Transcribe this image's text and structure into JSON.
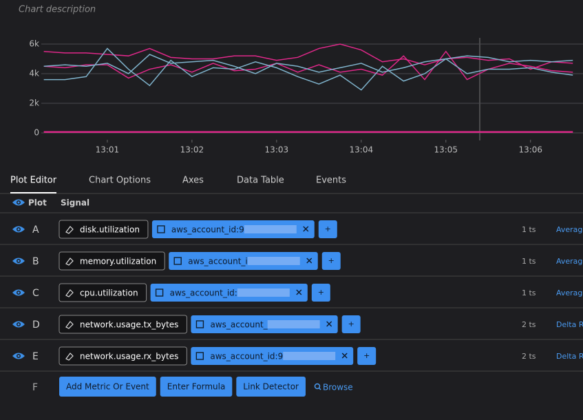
{
  "chart_description": "Chart description",
  "chart_data": {
    "type": "line",
    "x": [
      780.25,
      780.5,
      780.75,
      781,
      781.25,
      781.5,
      781.75,
      782,
      782.25,
      782.5,
      782.75,
      783,
      783.25,
      783.5,
      783.75,
      784,
      784.25,
      784.5,
      784.75,
      785,
      785.25,
      785.5,
      785.75,
      786,
      786.25,
      786.5
    ],
    "series": [
      {
        "color": "#e0288a",
        "values": [
          5500,
          5400,
          5400,
          5300,
          5200,
          5700,
          5100,
          5000,
          5000,
          5200,
          5200,
          4900,
          5100,
          5700,
          6000,
          5600,
          4800,
          5000,
          4600,
          5000,
          5100,
          4900,
          5000,
          4300,
          4800,
          4700
        ]
      },
      {
        "color": "#e0288a",
        "values": [
          4500,
          4400,
          4600,
          4600,
          3700,
          4300,
          4600,
          4100,
          4700,
          4200,
          4300,
          4700,
          4100,
          4600,
          4100,
          4300,
          3900,
          5200,
          3600,
          5500,
          3600,
          4300,
          4700,
          4500,
          4200,
          4100
        ]
      },
      {
        "color": "#7fb3cc",
        "values": [
          3600,
          3600,
          3800,
          5700,
          4300,
          3200,
          4900,
          3800,
          4400,
          4300,
          4800,
          4400,
          3800,
          3300,
          3900,
          2900,
          4500,
          3500,
          4000,
          5000,
          4000,
          4300,
          4300,
          4400,
          4100,
          3900
        ]
      },
      {
        "color": "#7fb3cc",
        "values": [
          4500,
          4600,
          4500,
          4700,
          4000,
          5300,
          4700,
          4800,
          4900,
          4500,
          4000,
          4700,
          4500,
          4100,
          4400,
          4700,
          4100,
          4400,
          4800,
          5000,
          5200,
          5100,
          4800,
          4900,
          4800,
          4900
        ]
      },
      {
        "color": "#e0288a",
        "values": [
          80,
          80,
          80,
          80,
          80,
          80,
          80,
          80,
          80,
          80,
          80,
          80,
          80,
          80,
          80,
          80,
          80,
          80,
          80,
          80,
          80,
          80,
          80,
          80,
          80,
          80
        ]
      },
      {
        "color": "#e0288a",
        "values": [
          40,
          40,
          40,
          40,
          40,
          40,
          40,
          40,
          40,
          40,
          40,
          40,
          40,
          40,
          40,
          40,
          40,
          40,
          40,
          40,
          40,
          40,
          40,
          40,
          40,
          40
        ]
      }
    ],
    "xlim": [
      780.22,
      786.62
    ],
    "xticks": [
      {
        "value": 781,
        "label": "13:01"
      },
      {
        "value": 782,
        "label": "13:02"
      },
      {
        "value": 783,
        "label": "13:03"
      },
      {
        "value": 784,
        "label": "13:04"
      },
      {
        "value": 785,
        "label": "13:05"
      },
      {
        "value": 786,
        "label": "13:06"
      }
    ],
    "ylim": [
      -465,
      6650
    ],
    "yticks": [
      0,
      {
        "value": 2000,
        "label": "2k"
      },
      {
        "value": 4000,
        "label": "4k"
      },
      {
        "value": 6000,
        "label": "6k"
      }
    ],
    "grid": true
  },
  "tabs": [
    "Plot Editor",
    "Chart Options",
    "Axes",
    "Data Table",
    "Events"
  ],
  "plot_header": {
    "plot": "Plot",
    "signal": "Signal"
  },
  "add_label": "+",
  "plots": [
    {
      "letter": "A",
      "metric": "disk.utilization",
      "filter": "aws_account_id:9",
      "ts": "1 ts",
      "rollup": "Average"
    },
    {
      "letter": "B",
      "metric": "memory.utilization",
      "filter": "aws_account_i",
      "ts": "1 ts",
      "rollup": "Average"
    },
    {
      "letter": "C",
      "metric": "cpu.utilization",
      "filter": "aws_account_id:",
      "ts": "1 ts",
      "rollup": "Average"
    },
    {
      "letter": "D",
      "metric": "network.usage.tx_bytes",
      "filter": "aws_account_",
      "ts": "2 ts",
      "rollup": "Delta R"
    },
    {
      "letter": "E",
      "metric": "network.usage.rx_bytes",
      "filter": "aws_account_id:9",
      "ts": "2 ts",
      "rollup": "Delta R"
    }
  ],
  "new_plot": {
    "letter": "F",
    "actions": [
      "Add Metric Or Event",
      "Enter Formula",
      "Link Detector"
    ],
    "browse": "Browse"
  }
}
